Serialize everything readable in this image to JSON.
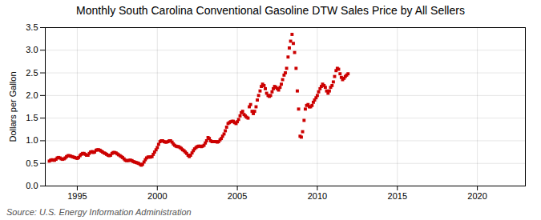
{
  "chart_data": {
    "type": "scatter",
    "title": "Monthly South Carolina Conventional Gasoline DTW Sales Price by All Sellers",
    "ylabel": "Dollars per Gallon",
    "source": "Source: U.S. Energy Information Administration",
    "color": "#cc0000",
    "marker": "square",
    "grid": true,
    "xlim": [
      1993.0,
      2023.0
    ],
    "ylim": [
      0.0,
      3.5
    ],
    "xticks": [
      1995,
      2000,
      2005,
      2010,
      2015,
      2020
    ],
    "yticks": [
      {
        "value": 0.0,
        "label": "0.0"
      },
      0.5,
      {
        "value": 1.0,
        "label": "1.0"
      },
      1.5,
      {
        "value": 2.0,
        "label": "2.0"
      },
      2.5,
      {
        "value": 3.0,
        "label": "3.0"
      },
      3.5
    ],
    "x": [
      1993.25,
      1993.33,
      1993.42,
      1993.5,
      1993.58,
      1993.67,
      1993.75,
      1993.83,
      1993.92,
      1994.0,
      1994.08,
      1994.17,
      1994.25,
      1994.33,
      1994.42,
      1994.5,
      1994.58,
      1994.67,
      1994.75,
      1994.83,
      1994.92,
      1995.0,
      1995.08,
      1995.17,
      1995.25,
      1995.33,
      1995.42,
      1995.5,
      1995.58,
      1995.67,
      1995.75,
      1995.83,
      1995.92,
      1996.0,
      1996.08,
      1996.17,
      1996.25,
      1996.33,
      1996.42,
      1996.5,
      1996.58,
      1996.67,
      1996.75,
      1996.83,
      1996.92,
      1997.0,
      1997.08,
      1997.17,
      1997.25,
      1997.33,
      1997.42,
      1997.5,
      1997.58,
      1997.67,
      1997.75,
      1997.83,
      1997.92,
      1998.0,
      1998.08,
      1998.17,
      1998.25,
      1998.33,
      1998.42,
      1998.5,
      1998.58,
      1998.67,
      1998.75,
      1998.83,
      1998.92,
      1999.0,
      1999.08,
      1999.17,
      1999.25,
      1999.33,
      1999.42,
      1999.5,
      1999.58,
      1999.67,
      1999.75,
      1999.83,
      1999.92,
      2000.0,
      2000.08,
      2000.17,
      2000.25,
      2000.33,
      2000.42,
      2000.5,
      2000.58,
      2000.67,
      2000.75,
      2000.83,
      2000.92,
      2001.0,
      2001.08,
      2001.17,
      2001.25,
      2001.33,
      2001.42,
      2001.5,
      2001.58,
      2001.67,
      2001.75,
      2001.83,
      2001.92,
      2002.0,
      2002.08,
      2002.17,
      2002.25,
      2002.33,
      2002.42,
      2002.5,
      2002.58,
      2002.67,
      2002.75,
      2002.83,
      2002.92,
      2003.0,
      2003.08,
      2003.17,
      2003.25,
      2003.33,
      2003.42,
      2003.5,
      2003.58,
      2003.67,
      2003.75,
      2003.83,
      2003.92,
      2004.0,
      2004.08,
      2004.17,
      2004.25,
      2004.33,
      2004.42,
      2004.5,
      2004.58,
      2004.67,
      2004.75,
      2004.83,
      2004.92,
      2005.0,
      2005.08,
      2005.17,
      2005.25,
      2005.33,
      2005.42,
      2005.5,
      2005.58,
      2005.67,
      2005.75,
      2005.83,
      2005.92,
      2006.0,
      2006.08,
      2006.17,
      2006.25,
      2006.33,
      2006.42,
      2006.5,
      2006.58,
      2006.67,
      2006.75,
      2006.83,
      2006.92,
      2007.0,
      2007.08,
      2007.17,
      2007.25,
      2007.33,
      2007.42,
      2007.5,
      2007.58,
      2007.67,
      2007.75,
      2007.83,
      2007.92,
      2008.0,
      2008.08,
      2008.17,
      2008.25,
      2008.33,
      2008.42,
      2008.5,
      2008.58,
      2008.67,
      2008.75,
      2008.83,
      2008.92,
      2009.0,
      2009.08,
      2009.17,
      2009.25,
      2009.33,
      2009.42,
      2009.5,
      2009.58,
      2009.67,
      2009.75,
      2009.83,
      2009.92,
      2010.0,
      2010.08,
      2010.17,
      2010.25,
      2010.33,
      2010.42,
      2010.5,
      2010.58,
      2010.67,
      2010.75,
      2010.83,
      2010.92,
      2011.0,
      2011.08,
      2011.17,
      2011.25,
      2011.33,
      2011.42,
      2011.5,
      2011.58,
      2011.67,
      2011.75,
      2011.83,
      2011.92
    ],
    "values": [
      0.55,
      0.57,
      0.58,
      0.57,
      0.57,
      0.59,
      0.62,
      0.63,
      0.62,
      0.6,
      0.59,
      0.6,
      0.62,
      0.65,
      0.67,
      0.67,
      0.66,
      0.65,
      0.64,
      0.63,
      0.62,
      0.61,
      0.63,
      0.67,
      0.7,
      0.72,
      0.72,
      0.7,
      0.68,
      0.68,
      0.72,
      0.75,
      0.76,
      0.74,
      0.75,
      0.79,
      0.8,
      0.8,
      0.79,
      0.77,
      0.75,
      0.73,
      0.72,
      0.7,
      0.68,
      0.67,
      0.68,
      0.72,
      0.74,
      0.74,
      0.73,
      0.71,
      0.69,
      0.67,
      0.65,
      0.63,
      0.6,
      0.57,
      0.56,
      0.56,
      0.57,
      0.57,
      0.56,
      0.54,
      0.53,
      0.52,
      0.51,
      0.5,
      0.48,
      0.46,
      0.48,
      0.53,
      0.58,
      0.62,
      0.64,
      0.64,
      0.64,
      0.65,
      0.7,
      0.75,
      0.8,
      0.85,
      0.92,
      0.98,
      1.0,
      1.0,
      0.98,
      0.97,
      0.97,
      0.98,
      1.0,
      1.0,
      0.97,
      0.93,
      0.9,
      0.88,
      0.87,
      0.87,
      0.85,
      0.83,
      0.8,
      0.78,
      0.75,
      0.72,
      0.68,
      0.65,
      0.68,
      0.73,
      0.78,
      0.82,
      0.85,
      0.87,
      0.88,
      0.88,
      0.87,
      0.88,
      0.9,
      0.95,
      1.0,
      1.07,
      1.05,
      1.0,
      0.98,
      0.98,
      0.98,
      0.98,
      0.97,
      0.98,
      1.02,
      1.05,
      1.1,
      1.15,
      1.22,
      1.3,
      1.38,
      1.4,
      1.42,
      1.43,
      1.43,
      1.4,
      1.38,
      1.42,
      1.47,
      1.55,
      1.62,
      1.65,
      1.58,
      1.55,
      1.52,
      1.5,
      1.75,
      1.8,
      1.65,
      1.6,
      1.65,
      1.75,
      1.9,
      2.0,
      2.1,
      2.2,
      2.25,
      2.22,
      2.15,
      2.05,
      2.0,
      1.98,
      2.0,
      2.08,
      2.15,
      2.2,
      2.18,
      2.15,
      2.12,
      2.18,
      2.25,
      2.35,
      2.45,
      2.5,
      2.6,
      2.85,
      3.05,
      3.2,
      3.35,
      3.15,
      2.95,
      2.6,
      2.1,
      1.7,
      1.1,
      1.08,
      1.2,
      1.45,
      1.7,
      1.78,
      1.8,
      1.75,
      1.75,
      1.78,
      1.85,
      1.9,
      1.95,
      2.0,
      2.08,
      2.15,
      2.2,
      2.25,
      2.22,
      2.18,
      2.1,
      2.05,
      2.1,
      2.18,
      2.22,
      2.3,
      2.42,
      2.55,
      2.6,
      2.58,
      2.48,
      2.4,
      2.35,
      2.38,
      2.42,
      2.45,
      2.48
    ]
  }
}
